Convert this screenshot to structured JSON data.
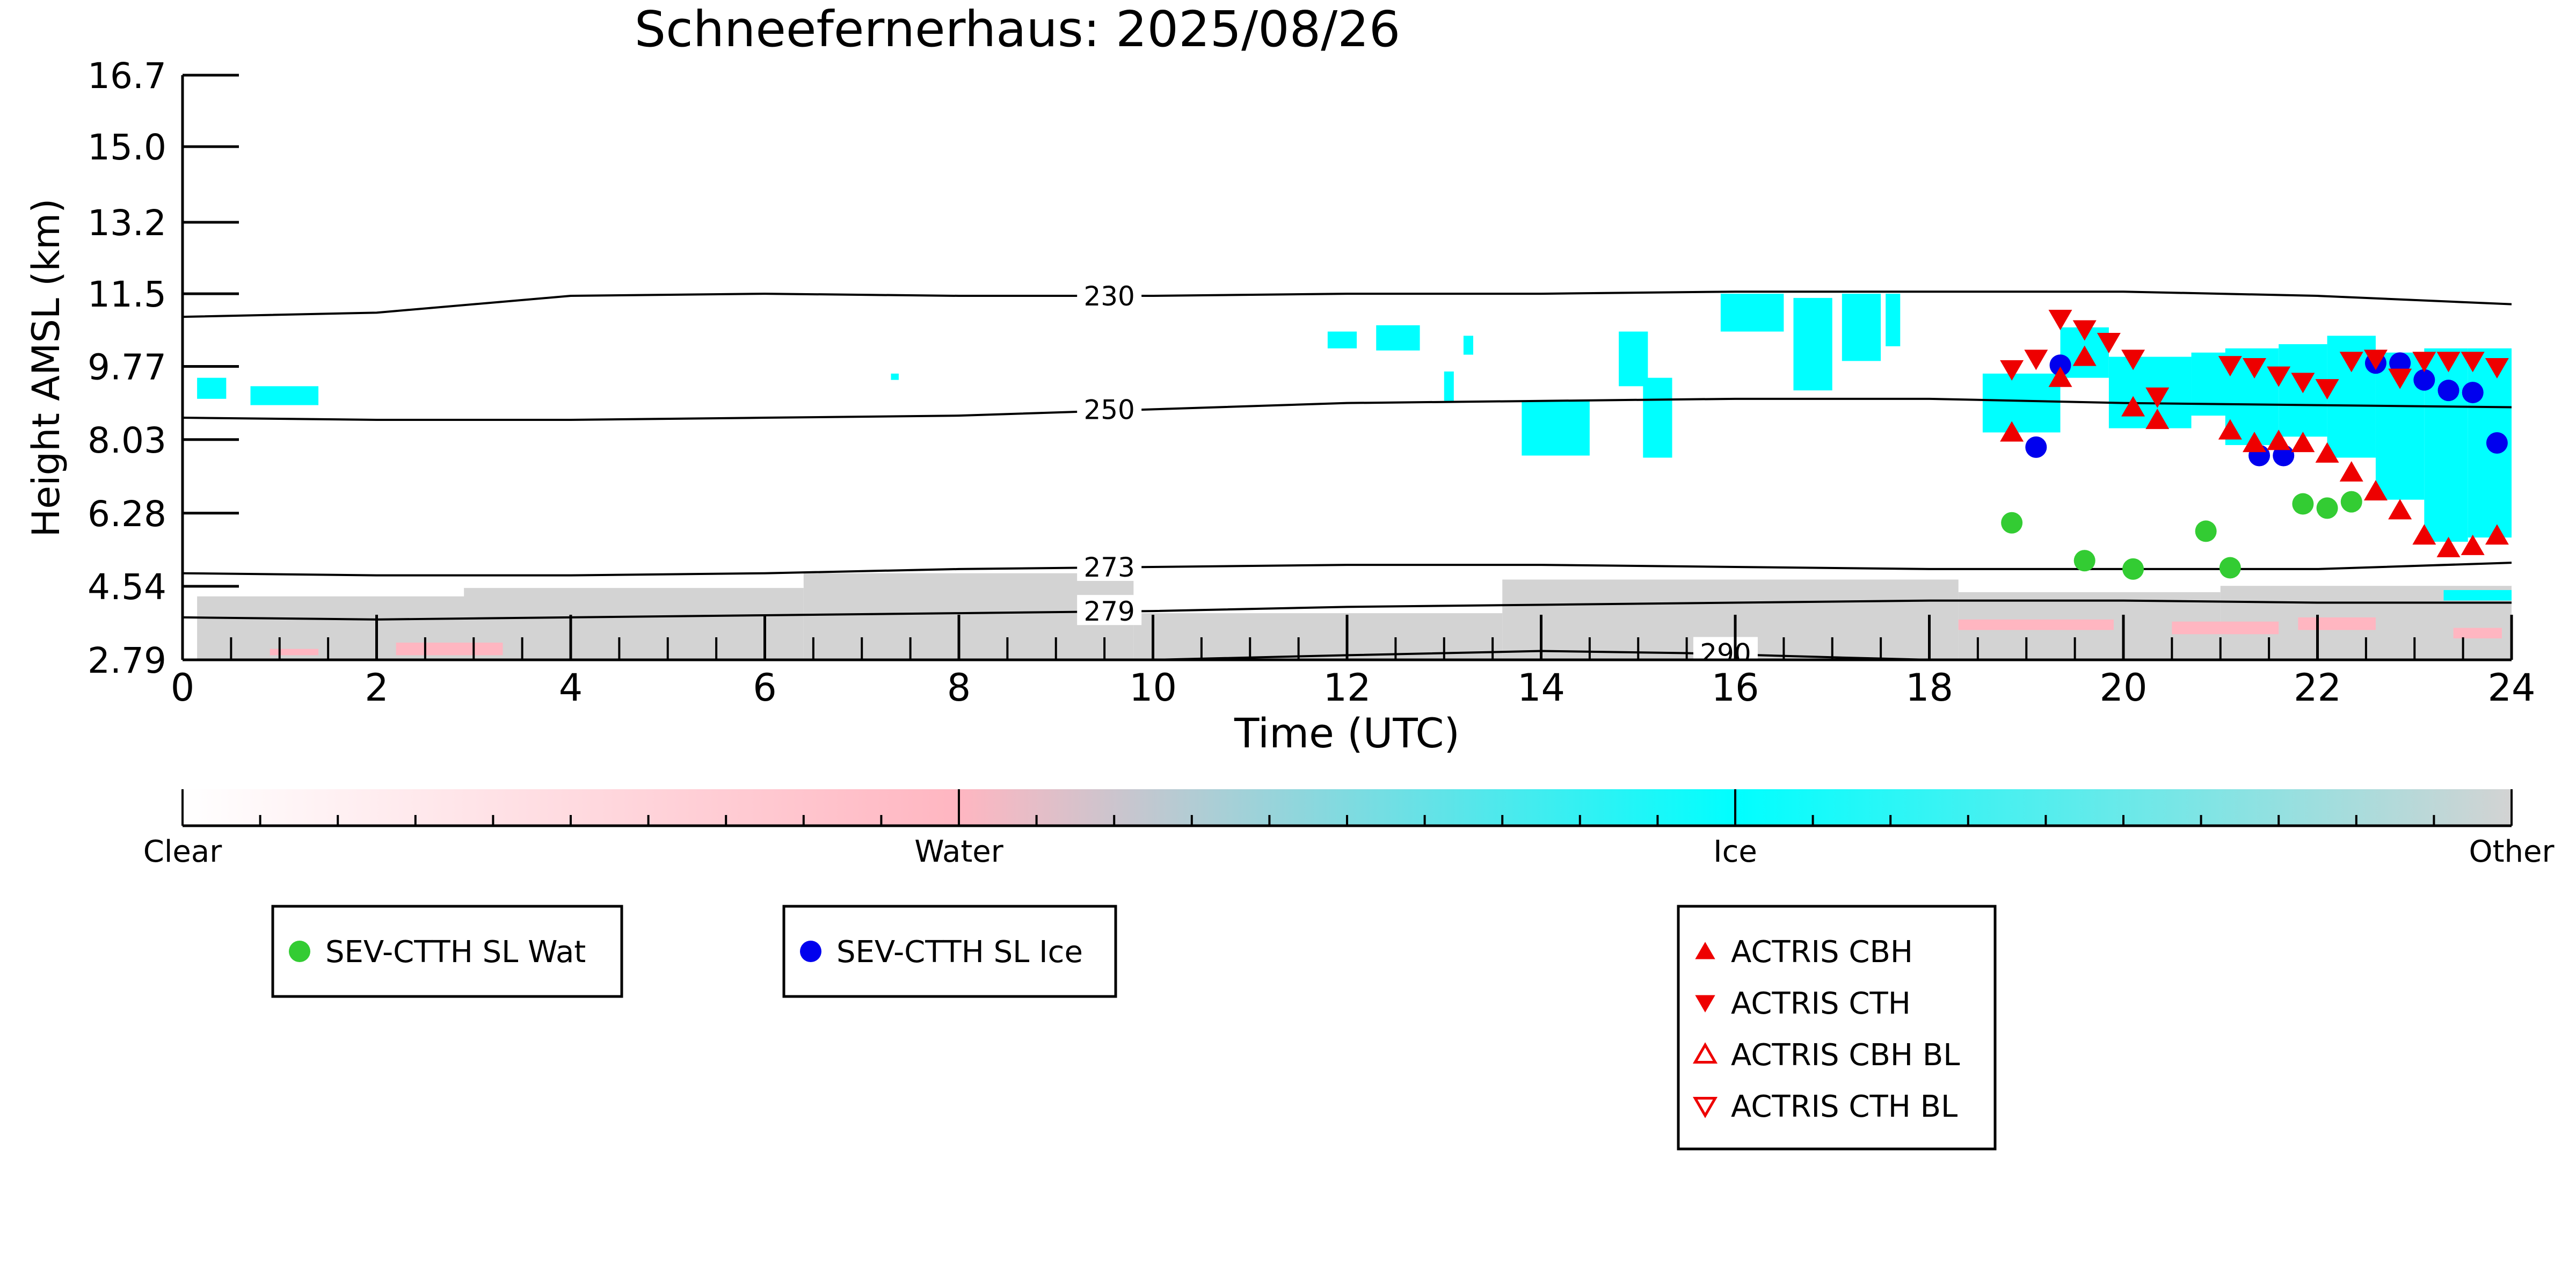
{
  "chart_data": {
    "type": "scatter",
    "title": "Schneefernerhaus: 2025/08/26",
    "xlabel": "Time (UTC)",
    "ylabel": "Height AMSL (km)",
    "xlim": [
      0,
      24
    ],
    "ylim": [
      2.79,
      16.7
    ],
    "x_ticks": [
      0,
      2,
      4,
      6,
      8,
      10,
      12,
      14,
      16,
      18,
      20,
      22,
      24
    ],
    "y_ticks": [
      "2.79",
      "4.54",
      "6.28",
      "8.03",
      "9.77",
      "11.5",
      "13.2",
      "15.0",
      "16.7"
    ],
    "grid": false,
    "contours": [
      {
        "label": "230",
        "x": [
          0,
          2,
          4,
          6,
          8,
          10,
          12,
          14,
          16,
          18,
          20,
          22,
          24
        ],
        "y": [
          10.95,
          11.05,
          11.45,
          11.5,
          11.45,
          11.45,
          11.5,
          11.5,
          11.55,
          11.55,
          11.55,
          11.45,
          11.25
        ]
      },
      {
        "label": "250",
        "x": [
          0,
          2,
          4,
          6,
          8,
          10,
          12,
          14,
          16,
          18,
          20,
          22,
          24
        ],
        "y": [
          8.55,
          8.5,
          8.5,
          8.55,
          8.6,
          8.75,
          8.9,
          8.95,
          9.0,
          9.0,
          8.9,
          8.85,
          8.8
        ]
      },
      {
        "label": "273",
        "x": [
          0,
          2,
          4,
          6,
          8,
          10,
          12,
          14,
          16,
          18,
          20,
          22,
          24
        ],
        "y": [
          4.85,
          4.8,
          4.8,
          4.85,
          4.95,
          5.0,
          5.05,
          5.05,
          5.0,
          4.95,
          4.95,
          4.95,
          5.1
        ]
      },
      {
        "label": "279",
        "x": [
          0,
          2,
          4,
          6,
          8,
          10,
          12,
          14,
          16,
          18,
          20,
          22,
          24
        ],
        "y": [
          3.8,
          3.75,
          3.8,
          3.85,
          3.9,
          3.95,
          4.05,
          4.1,
          4.15,
          4.2,
          4.2,
          4.15,
          4.15
        ]
      },
      {
        "label": "290",
        "x": [
          10,
          12,
          14,
          15.5,
          17,
          18
        ],
        "y": [
          2.79,
          2.9,
          3.0,
          2.95,
          2.85,
          2.79
        ]
      }
    ],
    "series": [
      {
        "name": "SEV-CTTH SL Wat",
        "marker": "circle",
        "color": "#33cc33",
        "x": [
          18.85,
          19.6,
          20.1,
          20.85,
          21.1,
          21.85,
          22.1,
          22.35
        ],
        "y": [
          6.05,
          5.15,
          4.95,
          5.85,
          4.98,
          6.5,
          6.4,
          6.55
        ]
      },
      {
        "name": "SEV-CTTH SL Ice",
        "marker": "circle",
        "color": "#0000ee",
        "x": [
          19.1,
          19.35,
          21.4,
          21.65,
          22.6,
          22.85,
          23.1,
          23.35,
          23.6,
          23.85
        ],
        "y": [
          7.85,
          9.8,
          7.65,
          7.65,
          9.85,
          9.85,
          9.45,
          9.2,
          9.15,
          7.95
        ]
      },
      {
        "name": "ACTRIS CBH",
        "marker": "triangle-up",
        "color": "#ee0000",
        "x": [
          18.85,
          19.35,
          19.6,
          20.1,
          20.35,
          21.1,
          21.35,
          21.6,
          21.85,
          22.1,
          22.35,
          22.6,
          22.85,
          23.1,
          23.35,
          23.6,
          23.85
        ],
        "y": [
          8.2,
          9.5,
          10.0,
          8.8,
          8.5,
          8.25,
          7.95,
          8.0,
          7.95,
          7.7,
          7.25,
          6.8,
          6.35,
          5.75,
          5.45,
          5.5,
          5.75
        ]
      },
      {
        "name": "ACTRIS CTH",
        "marker": "triangle-down",
        "color": "#ee0000",
        "x": [
          18.85,
          19.1,
          19.35,
          19.6,
          19.85,
          20.1,
          20.35,
          21.1,
          21.35,
          21.6,
          21.85,
          22.1,
          22.35,
          22.6,
          22.85,
          23.1,
          23.35,
          23.6,
          23.85
        ],
        "y": [
          9.7,
          9.95,
          10.9,
          10.65,
          10.35,
          9.95,
          9.05,
          9.8,
          9.75,
          9.55,
          9.4,
          9.25,
          9.9,
          9.95,
          9.5,
          9.9,
          9.9,
          9.9,
          9.75
        ]
      },
      {
        "name": "ACTRIS CBH BL",
        "marker": "triangle-up-open",
        "color": "#ee0000",
        "x": [],
        "y": []
      },
      {
        "name": "ACTRIS CTH BL",
        "marker": "triangle-down-open",
        "color": "#ee0000",
        "x": [],
        "y": []
      }
    ],
    "colorbar": {
      "labels": [
        "Clear",
        "Water",
        "Ice",
        "Other"
      ],
      "colors": [
        "#ffffff",
        "#ffb6c1",
        "#00ffff",
        "#d3d3d3"
      ]
    },
    "legend": [
      {
        "label": "SEV-CTTH SL Wat",
        "marker": "circle",
        "color": "#33cc33",
        "group": 0
      },
      {
        "label": "SEV-CTTH SL Ice",
        "marker": "circle",
        "color": "#0000ee",
        "group": 1
      },
      {
        "label": "ACTRIS CBH",
        "marker": "triangle-up",
        "color": "#ee0000",
        "group": 2
      },
      {
        "label": "ACTRIS CTH",
        "marker": "triangle-down",
        "color": "#ee0000",
        "group": 2
      },
      {
        "label": "ACTRIS CBH BL",
        "marker": "triangle-up-open",
        "color": "#ee0000",
        "group": 2
      },
      {
        "label": "ACTRIS CTH BL",
        "marker": "triangle-down-open",
        "color": "#ee0000",
        "group": 2
      }
    ],
    "legend_placement": "bottom"
  },
  "colors": {
    "ice": "#00ffff",
    "water": "#ffb6c1",
    "other": "#d3d3d3"
  }
}
